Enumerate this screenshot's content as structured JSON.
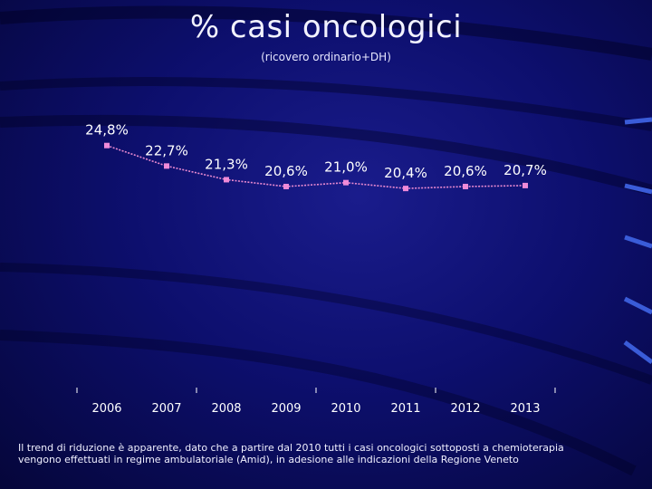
{
  "slide": {
    "title": "% casi oncologici",
    "subtitle": "(ricovero ordinario+DH)",
    "caption_line1": "Il trend di riduzione è apparente, dato che a partire dal 2010 tutti i casi oncologici sottoposti a chemioterapia",
    "caption_line2": "vengono effettuati in regime ambulatoriale (Amid), in adesione alle indicazioni della Regione Veneto"
  },
  "colors": {
    "line": "#e889d0",
    "marker": "#f08ad8",
    "label": "#ffffff",
    "tick": "#ffffff"
  },
  "chart_data": {
    "type": "line",
    "title": "% casi oncologici",
    "subtitle": "(ricovero ordinario+DH)",
    "categories": [
      "2006",
      "2007",
      "2008",
      "2009",
      "2010",
      "2011",
      "2012",
      "2013"
    ],
    "series": [
      {
        "values": [
          24.8,
          22.7,
          21.3,
          20.6,
          21.0,
          20.4,
          20.6,
          20.7
        ],
        "labels": [
          "24,8%",
          "22,7%",
          "21,3%",
          "20,6%",
          "21,0%",
          "20,4%",
          "20,6%",
          "20,7%"
        ]
      }
    ],
    "ylim": [
      0,
      36
    ],
    "grid": false,
    "legend": "none"
  }
}
